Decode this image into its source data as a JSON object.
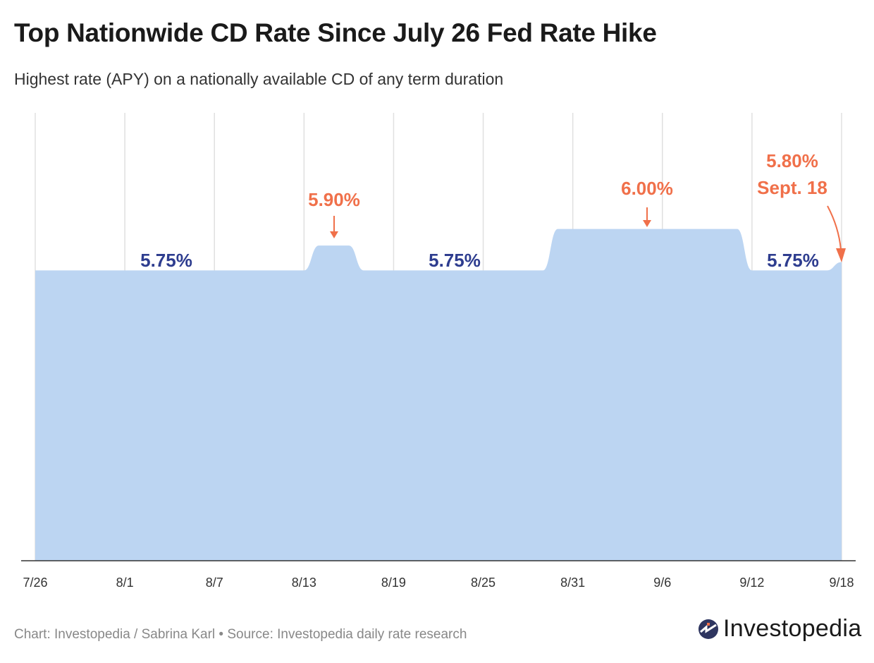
{
  "chart_data": {
    "type": "area",
    "title": "Top Nationwide CD Rate Since July 26 Fed Rate Hike",
    "subtitle": "Highest rate (APY) on a nationally available CD of any term duration",
    "x_ticks": [
      "7/26",
      "8/1",
      "8/7",
      "8/13",
      "8/19",
      "8/25",
      "8/31",
      "9/6",
      "9/12",
      "9/18"
    ],
    "ylim": [
      4.0,
      6.7
    ],
    "grid": "vertical",
    "points": [
      {
        "x": "7/26",
        "y": 5.75
      },
      {
        "x": "8/13",
        "y": 5.75
      },
      {
        "x": "8/14",
        "y": 5.9
      },
      {
        "x": "8/16",
        "y": 5.9
      },
      {
        "x": "8/17",
        "y": 5.75
      },
      {
        "x": "8/29",
        "y": 5.75
      },
      {
        "x": "8/30",
        "y": 6.0
      },
      {
        "x": "9/11",
        "y": 6.0
      },
      {
        "x": "9/12",
        "y": 5.75
      },
      {
        "x": "9/17",
        "y": 5.75
      },
      {
        "x": "9/18",
        "y": 5.8
      }
    ],
    "annotations": {
      "a1": "5.75%",
      "a2": "5.90%",
      "a3": "5.75%",
      "a4": "6.00%",
      "a5": "5.75%",
      "a6_line1": "5.80%",
      "a6_line2": "Sept. 18"
    },
    "colors": {
      "fill": "#bcd5f2",
      "navy": "#2e3d8f",
      "orange": "#f0704a",
      "grid": "#e0e0e0"
    }
  },
  "footer": "Chart: Investopedia / Sabrina Karl • Source: Investopedia daily rate research",
  "logo": "Investopedia"
}
